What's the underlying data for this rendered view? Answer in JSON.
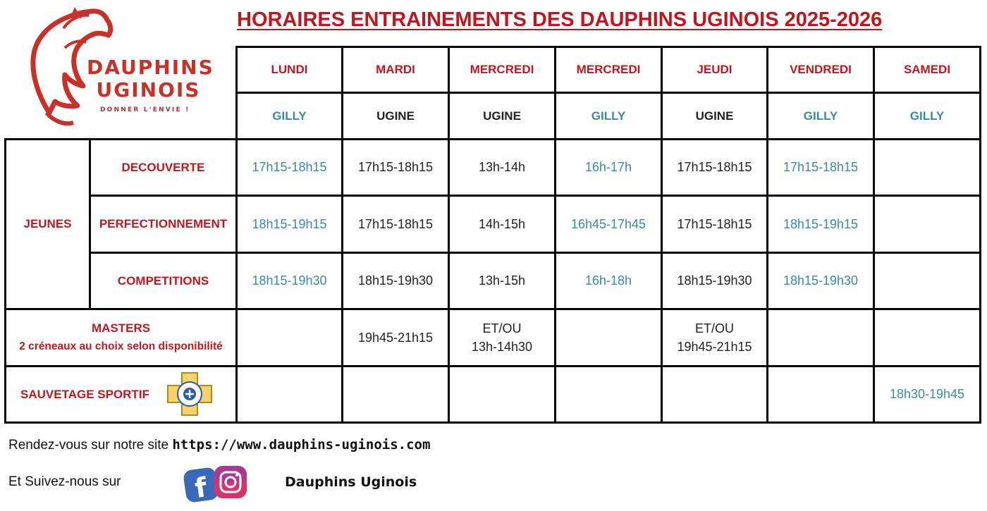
{
  "logo": {
    "line1": "DAUPHINS",
    "line2": "UGINOIS",
    "tagline": "DONNER L'ENVIE !",
    "color": "#c8312a"
  },
  "title": "HORAIRES ENTRAINEMENTS DES DAUPHINS UGINOIS 2025-2026",
  "days": [
    "LUNDI",
    "MARDI",
    "MERCREDI",
    "MERCREDI",
    "JEUDI",
    "VENDREDI",
    "SAMEDI"
  ],
  "locations": [
    "GILLY",
    "UGINE",
    "UGINE",
    "GILLY",
    "UGINE",
    "GILLY",
    "GILLY"
  ],
  "groups": {
    "jeunes": "JEUNES",
    "decouverte": "DECOUVERTE",
    "perfectionnement": "PERFECTIONNEMENT",
    "competitions": "COMPETITIONS",
    "masters": "MASTERS",
    "masters_note": "2 créneaux au choix selon disponibilité",
    "sauvetage": "SAUVETAGE SPORTIF"
  },
  "schedule": {
    "decouverte": [
      "17h15-18h15",
      "17h15-18h15",
      "13h-14h",
      "16h-17h",
      "17h15-18h15",
      "17h15-18h15",
      ""
    ],
    "perfectionnement": [
      "18h15-19h15",
      "17h15-18h15",
      "14h-15h",
      "16h45-17h45",
      "17h15-18h15",
      "18h15-19h15",
      ""
    ],
    "competitions": [
      "18h15-19h30",
      "18h15-19h30",
      "13h-15h",
      "16h-18h",
      "18h15-19h30",
      "18h15-19h30",
      ""
    ],
    "masters": {
      "mardi": "19h45-21h15",
      "mercredi_line1": "ET/OU",
      "mercredi_line2": "13h-14h30",
      "jeudi_line1": "ET/OU",
      "jeudi_line2": "19h45-21h15"
    },
    "sauvetage": {
      "samedi": "18h30-19h45"
    }
  },
  "footer": {
    "site_prefix": "Rendez-vous sur notre site ",
    "site_url": "https://www.dauphins-uginois.com",
    "follow": "Et Suivez-nous sur",
    "social_name": "Dauphins Uginois"
  },
  "colors": {
    "red": "#c0171f",
    "teal": "#3a8aa3",
    "black": "#222222"
  }
}
